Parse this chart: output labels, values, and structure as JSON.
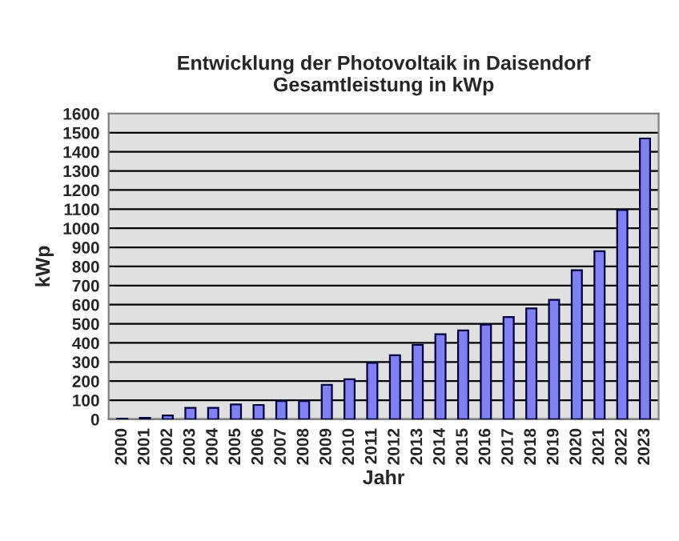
{
  "chart_data": {
    "type": "bar",
    "title": "Entwicklung der Photovoltaik in Daisendorf\nGesamtleistung in kWp",
    "xlabel": "Jahr",
    "ylabel": "kWp",
    "categories": [
      "2000",
      "2001",
      "2002",
      "2003",
      "2004",
      "2005",
      "2006",
      "2007",
      "2008",
      "2009",
      "2010",
      "2011",
      "2012",
      "2013",
      "2014",
      "2015",
      "2016",
      "2017",
      "2018",
      "2019",
      "2020",
      "2021",
      "2022",
      "2023"
    ],
    "values": [
      3,
      8,
      20,
      60,
      60,
      78,
      75,
      95,
      95,
      180,
      210,
      295,
      335,
      390,
      445,
      465,
      495,
      535,
      580,
      625,
      780,
      880,
      1095,
      1470
    ],
    "color": "#8080f0",
    "ylim": [
      0,
      1600
    ],
    "yticks": [
      0,
      100,
      200,
      300,
      400,
      500,
      600,
      700,
      800,
      900,
      1000,
      1100,
      1200,
      1300,
      1400,
      1500,
      1600
    ],
    "grid": "y",
    "legend": false
  }
}
